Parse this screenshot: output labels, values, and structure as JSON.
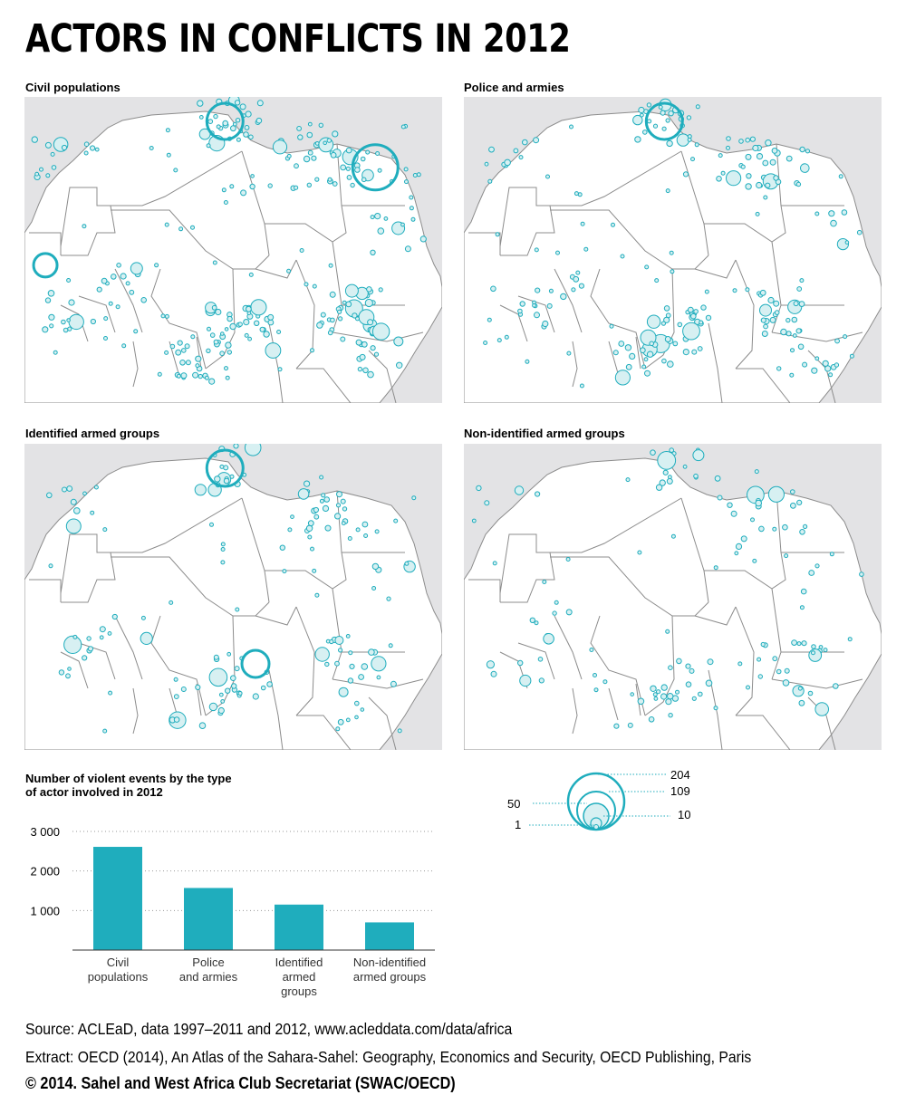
{
  "title": "ACTORS IN CONFLICTS IN 2012",
  "maps": [
    {
      "title": "Civil populations",
      "density": 1.0,
      "big_circles": 3
    },
    {
      "title": "Police and armies",
      "density": 0.75,
      "big_circles": 1
    },
    {
      "title": "Identified armed groups",
      "density": 0.55,
      "big_circles": 1
    },
    {
      "title": "Non-identified armed groups",
      "density": 0.45,
      "big_circles": 0
    }
  ],
  "colors": {
    "accent": "#1fadbd",
    "circle_fill": "#d7f0f2",
    "sea": "#e3e3e5",
    "land": "#ffffff",
    "border": "#8c8c8c"
  },
  "chart_data": {
    "type": "bar",
    "title": "Number of violent events by the type of actor involved in 2012",
    "title_lines": [
      "Number of violent events by the type",
      "of actor involved in 2012"
    ],
    "categories": [
      "Civil populations",
      "Police and armies",
      "Identified armed groups",
      "Non-identified armed groups"
    ],
    "category_lines": [
      [
        "Civil",
        "populations"
      ],
      [
        "Police",
        "and armies"
      ],
      [
        "Identified",
        "armed",
        "groups"
      ],
      [
        "Non-identified",
        "armed groups"
      ]
    ],
    "values": [
      2610,
      1570,
      1150,
      700
    ],
    "ylim": [
      0,
      3000
    ],
    "yticks": [
      1000,
      2000,
      3000
    ],
    "ytick_labels": [
      "1 000",
      "2 000",
      "3 000"
    ],
    "grid": "dotted horizontal"
  },
  "size_legend": {
    "values": [
      "204",
      "109",
      "50",
      "10",
      "1"
    ]
  },
  "source": "Source: ACLEaD, data 1997–2011 and 2012, www.acleddata.com/data/africa",
  "extract": "Extract: OECD (2014), An Atlas of the Sahara-Sahel: Geography, Economics  and Security, OECD Publishing, Paris",
  "copyright": "© 2014. Sahel and West Africa Club Secretariat (SWAC/OECD)"
}
